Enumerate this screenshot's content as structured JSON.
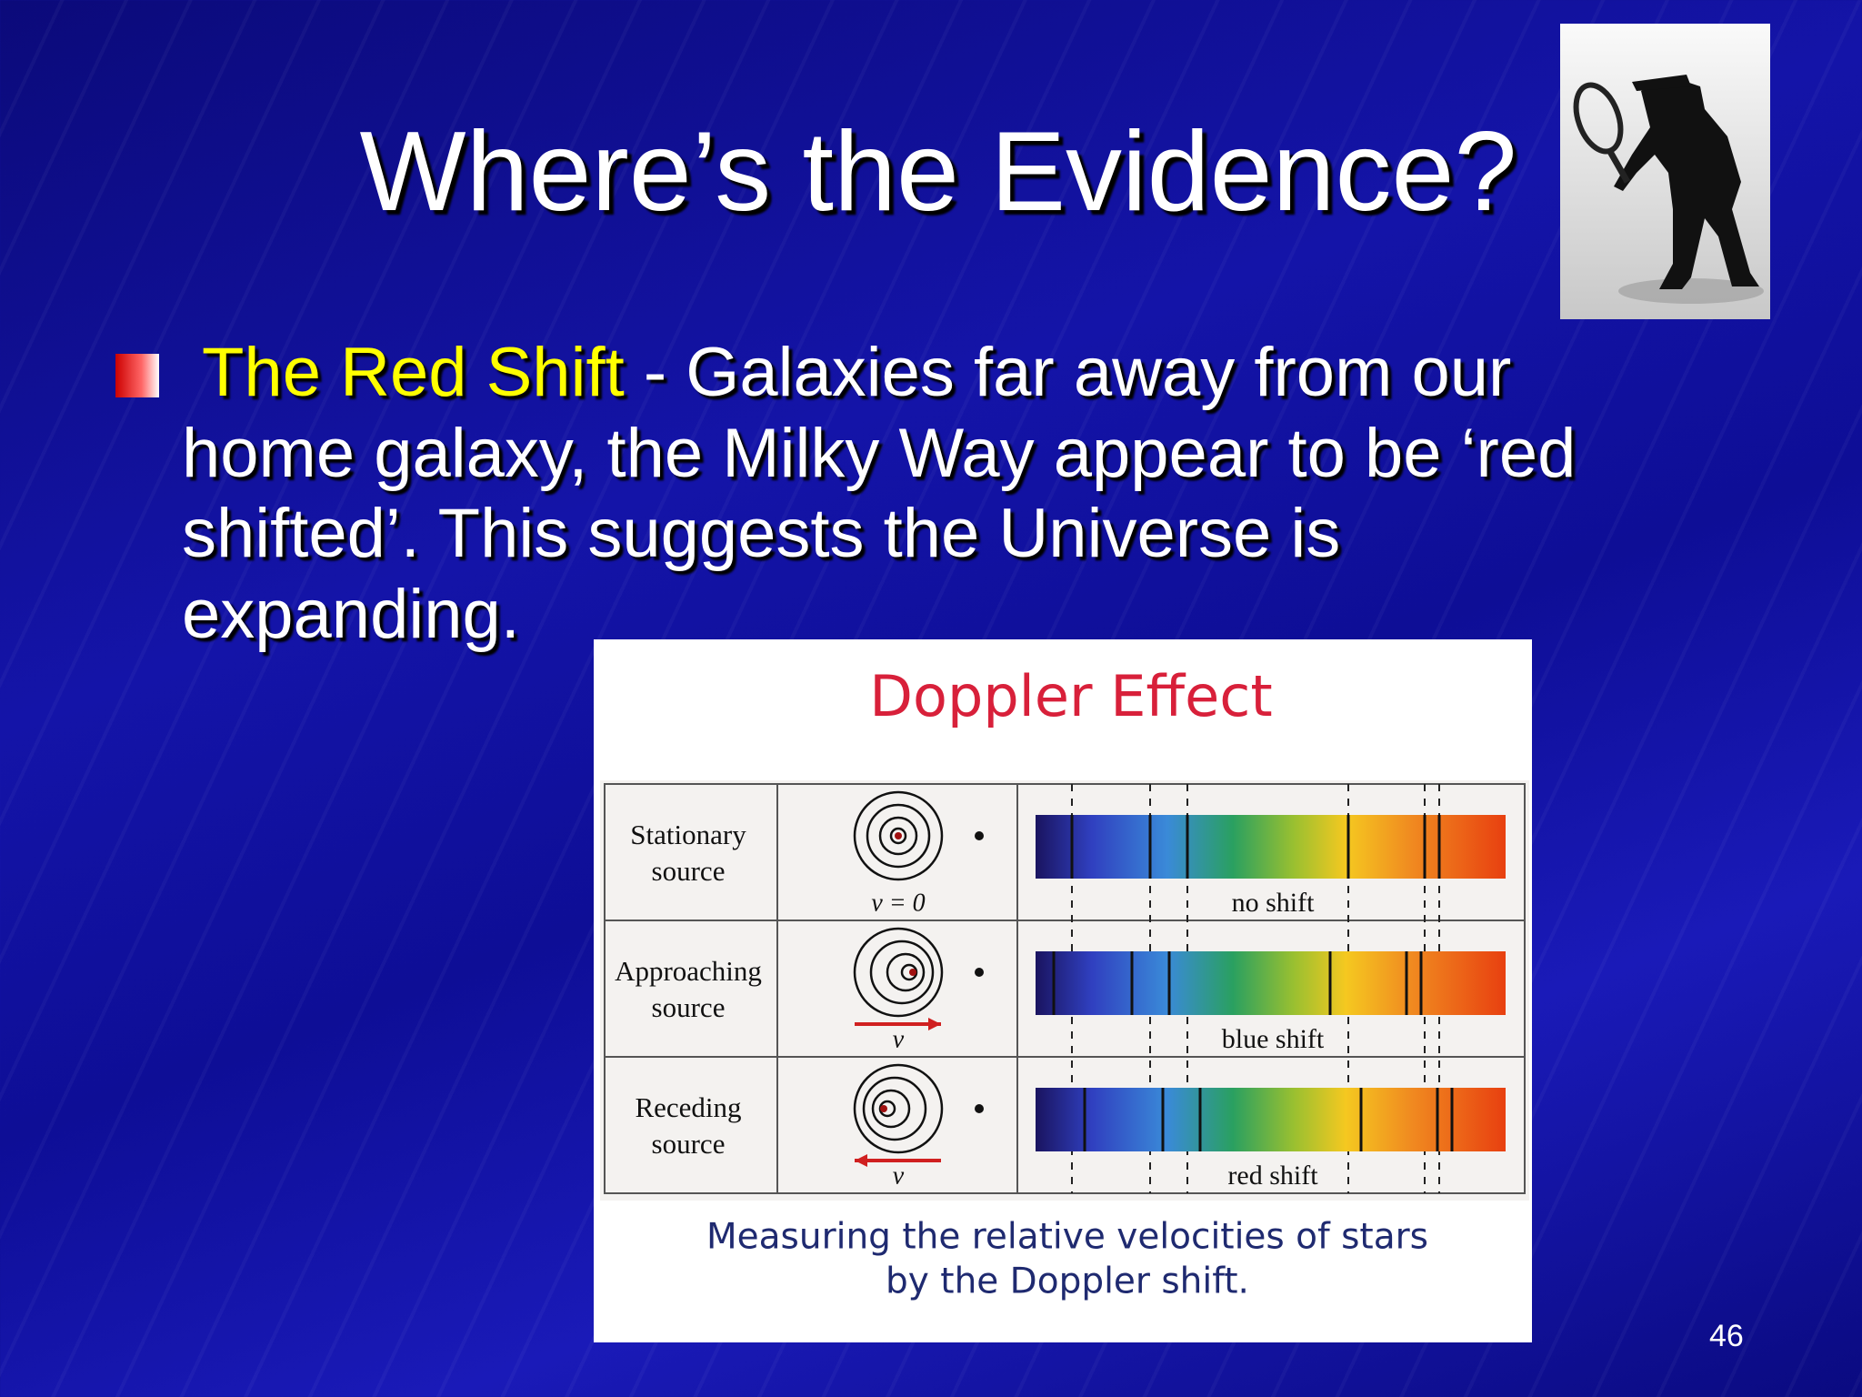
{
  "title": "Where’s the Evidence?",
  "bullet": {
    "highlight": "The Red Shift",
    "text": "- Galaxies far away from our home galaxy, the Milky Way appear to be ‘red shifted’. This suggests the Universe is expanding."
  },
  "figure": {
    "title": "Doppler Effect",
    "rows": [
      {
        "label": [
          "Stationary",
          "source"
        ],
        "velocity": "v = 0",
        "shift": "no shift"
      },
      {
        "label": [
          "Approaching",
          "source"
        ],
        "velocity": "v",
        "shift": "blue shift"
      },
      {
        "label": [
          "Receding",
          "source"
        ],
        "velocity": "v",
        "shift": "red shift"
      }
    ],
    "caption": [
      "Measuring the relative velocities of stars",
      "by the Doppler shift."
    ]
  },
  "slide_number": "46"
}
